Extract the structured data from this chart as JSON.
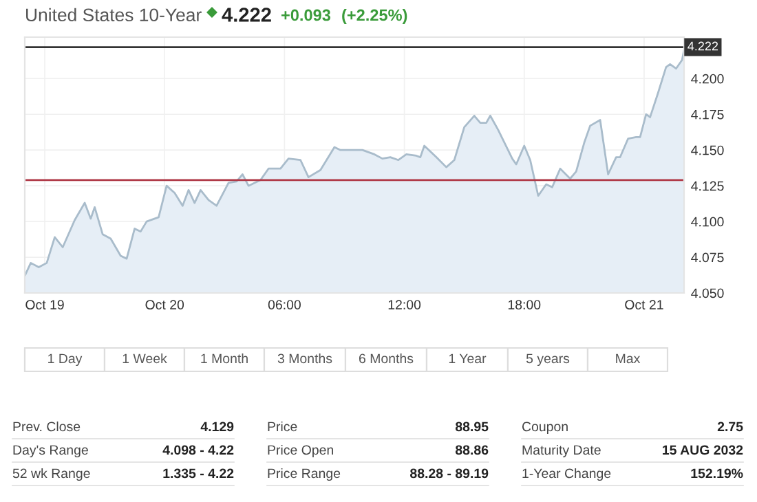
{
  "chart_data": {
    "type": "area",
    "title": "United States 10-Year",
    "annotations": [
      "4.222",
      "+0.093",
      "(+2.25%)",
      "1 Day",
      "1 Week",
      "1 Month",
      "3 Months",
      "6 Months",
      "1 Year",
      "5 years",
      "Max",
      "Prev. Close",
      "4.129",
      "Day's Range",
      "4.098 - 4.22",
      "52 wk Range",
      "1.335 - 4.22",
      "Price",
      "88.95",
      "Price Open",
      "88.86",
      "Price Range",
      "88.28 - 89.19",
      "Coupon",
      "2.75",
      "Maturity Date",
      "15 AUG 2032",
      "1-Year Change",
      "152.19%"
    ],
    "xlim": [
      -7,
      26
    ],
    "xticks": [
      {
        "value": -6,
        "label": "Oct 19"
      },
      {
        "value": 0,
        "label": "Oct 20"
      },
      {
        "value": 6,
        "label": "06:00"
      },
      {
        "value": 12,
        "label": "12:00"
      },
      {
        "value": 18,
        "label": "18:00"
      },
      {
        "value": 24,
        "label": "Oct 21"
      }
    ],
    "ylim": [
      4.05,
      4.229
    ],
    "yticks": [
      {
        "value": 4.05,
        "label": "4.050"
      },
      {
        "value": 4.075,
        "label": "4.075"
      },
      {
        "value": 4.1,
        "label": "4.100"
      },
      {
        "value": 4.125,
        "label": "4.125"
      },
      {
        "value": 4.15,
        "label": "4.150"
      },
      {
        "value": 4.175,
        "label": "4.175"
      },
      {
        "value": 4.2,
        "label": "4.200"
      }
    ],
    "grid": true,
    "ref_lines": [
      {
        "axis": "y",
        "value": 4.222,
        "label": "4.222",
        "color": "#333333"
      },
      {
        "axis": "y",
        "value": 4.129,
        "color": "#b03a48"
      }
    ],
    "series": [
      {
        "color": "#a9bccb",
        "x": [
          -7.0,
          -6.7,
          -6.3,
          -5.9,
          -5.5,
          -5.1,
          -4.5,
          -4.0,
          -3.7,
          -3.5,
          -3.1,
          -2.7,
          -2.2,
          -1.9,
          -1.5,
          -1.2,
          -0.9,
          -0.3,
          0.1,
          0.5,
          0.9,
          1.2,
          1.5,
          1.8,
          2.2,
          2.6,
          3.2,
          3.6,
          3.9,
          4.2,
          4.8,
          5.2,
          5.8,
          6.2,
          6.8,
          7.2,
          7.8,
          8.5,
          8.8,
          9.9,
          10.5,
          10.9,
          11.3,
          11.7,
          12.1,
          12.6,
          12.8,
          13.0,
          13.6,
          14.1,
          14.5,
          15.0,
          15.5,
          15.8,
          16.1,
          16.3,
          16.7,
          17.4,
          17.6,
          18.0,
          18.3,
          18.7,
          19.1,
          19.4,
          19.8,
          20.3,
          20.6,
          21.0,
          21.3,
          21.8,
          22.2,
          22.6,
          22.8,
          23.2,
          23.6,
          23.8,
          24.1,
          24.3,
          24.7,
          25.1,
          25.3,
          25.6,
          25.9,
          26.0
        ],
        "values": [
          4.062,
          4.071,
          4.068,
          4.071,
          4.089,
          4.082,
          4.101,
          4.113,
          4.102,
          4.11,
          4.091,
          4.088,
          4.076,
          4.074,
          4.095,
          4.093,
          4.1,
          4.103,
          4.125,
          4.12,
          4.111,
          4.122,
          4.113,
          4.122,
          4.115,
          4.111,
          4.127,
          4.128,
          4.133,
          4.125,
          4.129,
          4.137,
          4.137,
          4.144,
          4.143,
          4.131,
          4.136,
          4.152,
          4.15,
          4.15,
          4.147,
          4.144,
          4.145,
          4.143,
          4.147,
          4.146,
          4.145,
          4.153,
          4.145,
          4.138,
          4.143,
          4.166,
          4.174,
          4.169,
          4.169,
          4.174,
          4.164,
          4.144,
          4.14,
          4.153,
          4.143,
          4.118,
          4.126,
          4.124,
          4.137,
          4.13,
          4.135,
          4.155,
          4.167,
          4.171,
          4.133,
          4.145,
          4.145,
          4.158,
          4.159,
          4.159,
          4.175,
          4.173,
          4.19,
          4.208,
          4.21,
          4.207,
          4.213,
          4.22
        ]
      }
    ]
  }
}
